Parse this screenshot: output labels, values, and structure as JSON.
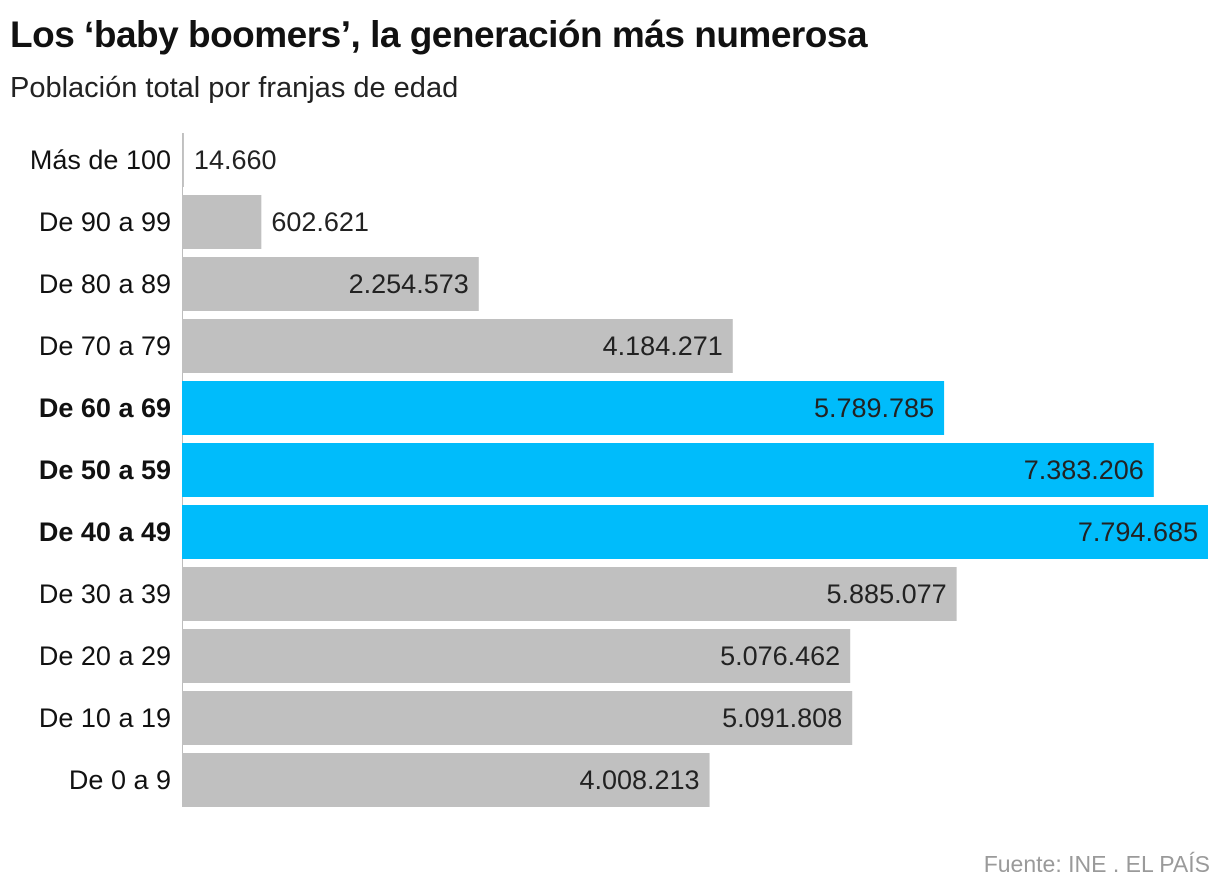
{
  "title": "Los ‘baby boomers’, la generación más numerosa",
  "subtitle": "Población total por franjas de edad",
  "source": "Fuente: INE . EL PAÍS",
  "colors": {
    "default_bar": "#c0c0c0",
    "highlight_bar": "#00bcfb",
    "label_text": "#222222"
  },
  "chart_data": {
    "type": "bar",
    "orientation": "horizontal",
    "categories": [
      "Más de 100",
      "De 90 a 99",
      "De 80 a 89",
      "De 70 a 79",
      "De 60 a 69",
      "De 50 a 59",
      "De 40 a 49",
      "De 30 a 39",
      "De 20 a 29",
      "De 10 a 19",
      "De 0 a 9"
    ],
    "values": [
      14660,
      602621,
      2254573,
      4184271,
      5789785,
      7383206,
      7794685,
      5885077,
      5076462,
      5091808,
      4008213
    ],
    "value_labels": [
      "14.660",
      "602.621",
      "2.254.573",
      "4.184.271",
      "5.789.785",
      "7.383.206",
      "7.794.685",
      "5.885.077",
      "5.076.462",
      "5.091.808",
      "4.008.213"
    ],
    "highlighted": [
      "De 60 a 69",
      "De 50 a 59",
      "De 40 a 49"
    ],
    "xlim": [
      0,
      7794685
    ],
    "grid": false,
    "legend": "none"
  }
}
